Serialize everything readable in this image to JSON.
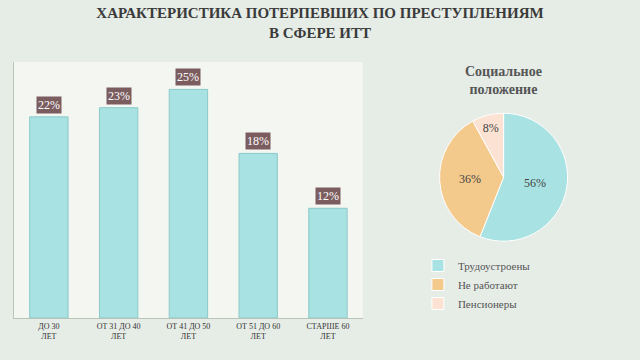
{
  "chart_data": [
    {
      "type": "bar",
      "title": "ХАРАКТЕРИСТИКА ПОТЕРПЕВШИХ ПО ПРЕСТУПЛЕНИЯМ В СФЕРЕ ИТТ",
      "categories": [
        "ДО 30 ЛЕТ",
        "ОТ 31 ДО 40 ЛЕТ",
        "ОТ 41 ДО 50 ЛЕТ",
        "ОТ 51 ДО 60 ЛЕТ",
        "СТАРШЕ 60 ЛЕТ"
      ],
      "values": [
        22,
        23,
        25,
        18,
        12
      ],
      "value_labels": [
        "22%",
        "23%",
        "25%",
        "18%",
        "12%"
      ],
      "data_labels": true,
      "color": "#a8e2e2",
      "ylim": [
        0,
        28
      ],
      "tick_labels": "x",
      "grid": false
    },
    {
      "type": "pie",
      "title": "Социальное положение",
      "categories": [
        "Трудоустроены",
        "Не работают",
        "Пенсионеры"
      ],
      "values": [
        56,
        36,
        8
      ],
      "value_labels": [
        "56%",
        "36%",
        "8%"
      ],
      "colors": [
        "#a8e2e2",
        "#f3c98c",
        "#fbe2d2"
      ],
      "data_labels": true,
      "legend": "bottom"
    }
  ]
}
